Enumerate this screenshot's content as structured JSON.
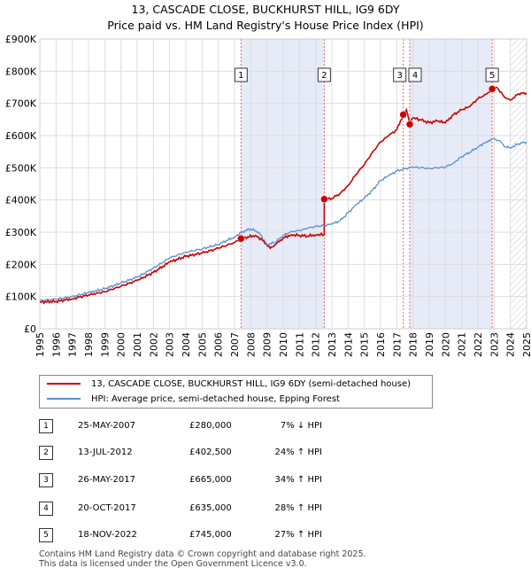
{
  "title": {
    "line1": "13, CASCADE CLOSE, BUCKHURST HILL, IG9 6DY",
    "line2": "Price paid vs. HM Land Registry's House Price Index (HPI)"
  },
  "chart_data": {
    "type": "line",
    "title": "13, CASCADE CLOSE, BUCKHURST HILL, IG9 6DY - Price paid vs. HM Land Registry's House Price Index (HPI)",
    "xlabel": "",
    "ylabel": "",
    "xlim": [
      1995,
      2025
    ],
    "ylim": [
      0,
      900000
    ],
    "y_ticks": [
      {
        "value": 0,
        "label": "£0"
      },
      {
        "value": 100000,
        "label": "£100K"
      },
      {
        "value": 200000,
        "label": "£200K"
      },
      {
        "value": 300000,
        "label": "£300K"
      },
      {
        "value": 400000,
        "label": "£400K"
      },
      {
        "value": 500000,
        "label": "£500K"
      },
      {
        "value": 600000,
        "label": "£600K"
      },
      {
        "value": 700000,
        "label": "£700K"
      },
      {
        "value": 800000,
        "label": "£800K"
      },
      {
        "value": 900000,
        "label": "£900K"
      }
    ],
    "x_ticks": [
      "1995",
      "1996",
      "1997",
      "1998",
      "1999",
      "2000",
      "2001",
      "2002",
      "2003",
      "2004",
      "2005",
      "2006",
      "2007",
      "2008",
      "2009",
      "2010",
      "2011",
      "2012",
      "2013",
      "2014",
      "2015",
      "2016",
      "2017",
      "2018",
      "2019",
      "2020",
      "2021",
      "2022",
      "2023",
      "2024",
      "2025"
    ],
    "grid": true,
    "series": [
      {
        "name": "13, CASCADE CLOSE, BUCKHURST HILL, IG9 6DY (semi-detached house)",
        "color": "#cc0000",
        "points": [
          [
            1995.0,
            83000
          ],
          [
            1996.0,
            85000
          ],
          [
            1997.0,
            93000
          ],
          [
            1998.0,
            105000
          ],
          [
            1999.0,
            115000
          ],
          [
            2000.0,
            132000
          ],
          [
            2001.0,
            150000
          ],
          [
            2002.0,
            175000
          ],
          [
            2003.0,
            207000
          ],
          [
            2004.0,
            225000
          ],
          [
            2005.0,
            235000
          ],
          [
            2006.0,
            250000
          ],
          [
            2007.0,
            268000
          ],
          [
            2007.4,
            280000
          ],
          [
            2007.8,
            285000
          ],
          [
            2008.3,
            290000
          ],
          [
            2008.8,
            272000
          ],
          [
            2009.2,
            250000
          ],
          [
            2009.6,
            265000
          ],
          [
            2010.0,
            282000
          ],
          [
            2010.5,
            292000
          ],
          [
            2011.0,
            290000
          ],
          [
            2011.5,
            288000
          ],
          [
            2012.0,
            292000
          ],
          [
            2012.53,
            293000
          ],
          [
            2012.53,
            402500
          ],
          [
            2013.0,
            405000
          ],
          [
            2013.5,
            420000
          ],
          [
            2014.0,
            445000
          ],
          [
            2014.5,
            480000
          ],
          [
            2015.0,
            510000
          ],
          [
            2015.5,
            548000
          ],
          [
            2016.0,
            580000
          ],
          [
            2016.5,
            600000
          ],
          [
            2017.0,
            618000
          ],
          [
            2017.4,
            665000
          ],
          [
            2017.6,
            680000
          ],
          [
            2017.8,
            635000
          ],
          [
            2018.0,
            655000
          ],
          [
            2018.5,
            648000
          ],
          [
            2019.0,
            640000
          ],
          [
            2019.5,
            645000
          ],
          [
            2020.0,
            640000
          ],
          [
            2020.5,
            665000
          ],
          [
            2021.0,
            680000
          ],
          [
            2021.5,
            690000
          ],
          [
            2022.0,
            715000
          ],
          [
            2022.5,
            728000
          ],
          [
            2022.88,
            745000
          ],
          [
            2023.2,
            748000
          ],
          [
            2023.6,
            722000
          ],
          [
            2024.0,
            710000
          ],
          [
            2024.5,
            730000
          ],
          [
            2025.0,
            732000
          ]
        ]
      },
      {
        "name": "HPI: Average price, semi-detached house, Epping Forest",
        "color": "#5b8fcf",
        "points": [
          [
            1995.0,
            88000
          ],
          [
            1996.0,
            92000
          ],
          [
            1997.0,
            100000
          ],
          [
            1998.0,
            112000
          ],
          [
            1999.0,
            124000
          ],
          [
            2000.0,
            142000
          ],
          [
            2001.0,
            160000
          ],
          [
            2002.0,
            188000
          ],
          [
            2003.0,
            220000
          ],
          [
            2004.0,
            238000
          ],
          [
            2005.0,
            248000
          ],
          [
            2006.0,
            262000
          ],
          [
            2007.0,
            285000
          ],
          [
            2007.5,
            302000
          ],
          [
            2008.0,
            310000
          ],
          [
            2008.5,
            300000
          ],
          [
            2009.0,
            262000
          ],
          [
            2009.5,
            268000
          ],
          [
            2010.0,
            290000
          ],
          [
            2010.5,
            302000
          ],
          [
            2011.0,
            305000
          ],
          [
            2011.5,
            312000
          ],
          [
            2012.0,
            318000
          ],
          [
            2012.5,
            320000
          ],
          [
            2013.0,
            325000
          ],
          [
            2013.5,
            335000
          ],
          [
            2014.0,
            360000
          ],
          [
            2014.5,
            385000
          ],
          [
            2015.0,
            405000
          ],
          [
            2015.5,
            430000
          ],
          [
            2016.0,
            460000
          ],
          [
            2016.5,
            475000
          ],
          [
            2017.0,
            490000
          ],
          [
            2017.5,
            497000
          ],
          [
            2018.0,
            502000
          ],
          [
            2018.5,
            500000
          ],
          [
            2019.0,
            498000
          ],
          [
            2019.5,
            500000
          ],
          [
            2020.0,
            502000
          ],
          [
            2020.5,
            515000
          ],
          [
            2021.0,
            535000
          ],
          [
            2021.5,
            548000
          ],
          [
            2022.0,
            565000
          ],
          [
            2022.5,
            580000
          ],
          [
            2022.88,
            590000
          ],
          [
            2023.3,
            585000
          ],
          [
            2023.7,
            565000
          ],
          [
            2024.0,
            562000
          ],
          [
            2024.5,
            575000
          ],
          [
            2025.0,
            580000
          ]
        ]
      }
    ],
    "sales": [
      {
        "num": "1",
        "date": "25-MAY-2007",
        "price": "£280,000",
        "hpi": "7% ↓ HPI",
        "x": 2007.4,
        "y": 280000
      },
      {
        "num": "2",
        "date": "13-JUL-2012",
        "price": "£402,500",
        "hpi": "24% ↑ HPI",
        "x": 2012.53,
        "y": 402500
      },
      {
        "num": "3",
        "date": "26-MAY-2017",
        "price": "£665,000",
        "hpi": "34% ↑ HPI",
        "x": 2017.4,
        "y": 665000
      },
      {
        "num": "4",
        "date": "20-OCT-2017",
        "price": "£635,000",
        "hpi": "28% ↑ HPI",
        "x": 2017.8,
        "y": 635000
      },
      {
        "num": "5",
        "date": "18-NOV-2022",
        "price": "£745,000",
        "hpi": "27% ↑ HPI",
        "x": 2022.88,
        "y": 745000
      }
    ],
    "shaded_ranges": [
      [
        2007.4,
        2012.53
      ],
      [
        2017.8,
        2022.88
      ]
    ],
    "hatched_range": [
      2024.0,
      2025.0
    ]
  },
  "legend": {
    "series1": "13, CASCADE CLOSE, BUCKHURST HILL, IG9 6DY (semi-detached house)",
    "series2": "HPI: Average price, semi-detached house, Epping Forest"
  },
  "colors": {
    "price": "#cc0000",
    "hpi": "#5b8fcf",
    "shade": "#e6ebf7",
    "grid": "#dddddd"
  },
  "footer": {
    "line1": "Contains HM Land Registry data © Crown copyright and database right 2025.",
    "line2": "This data is licensed under the Open Government Licence v3.0."
  }
}
